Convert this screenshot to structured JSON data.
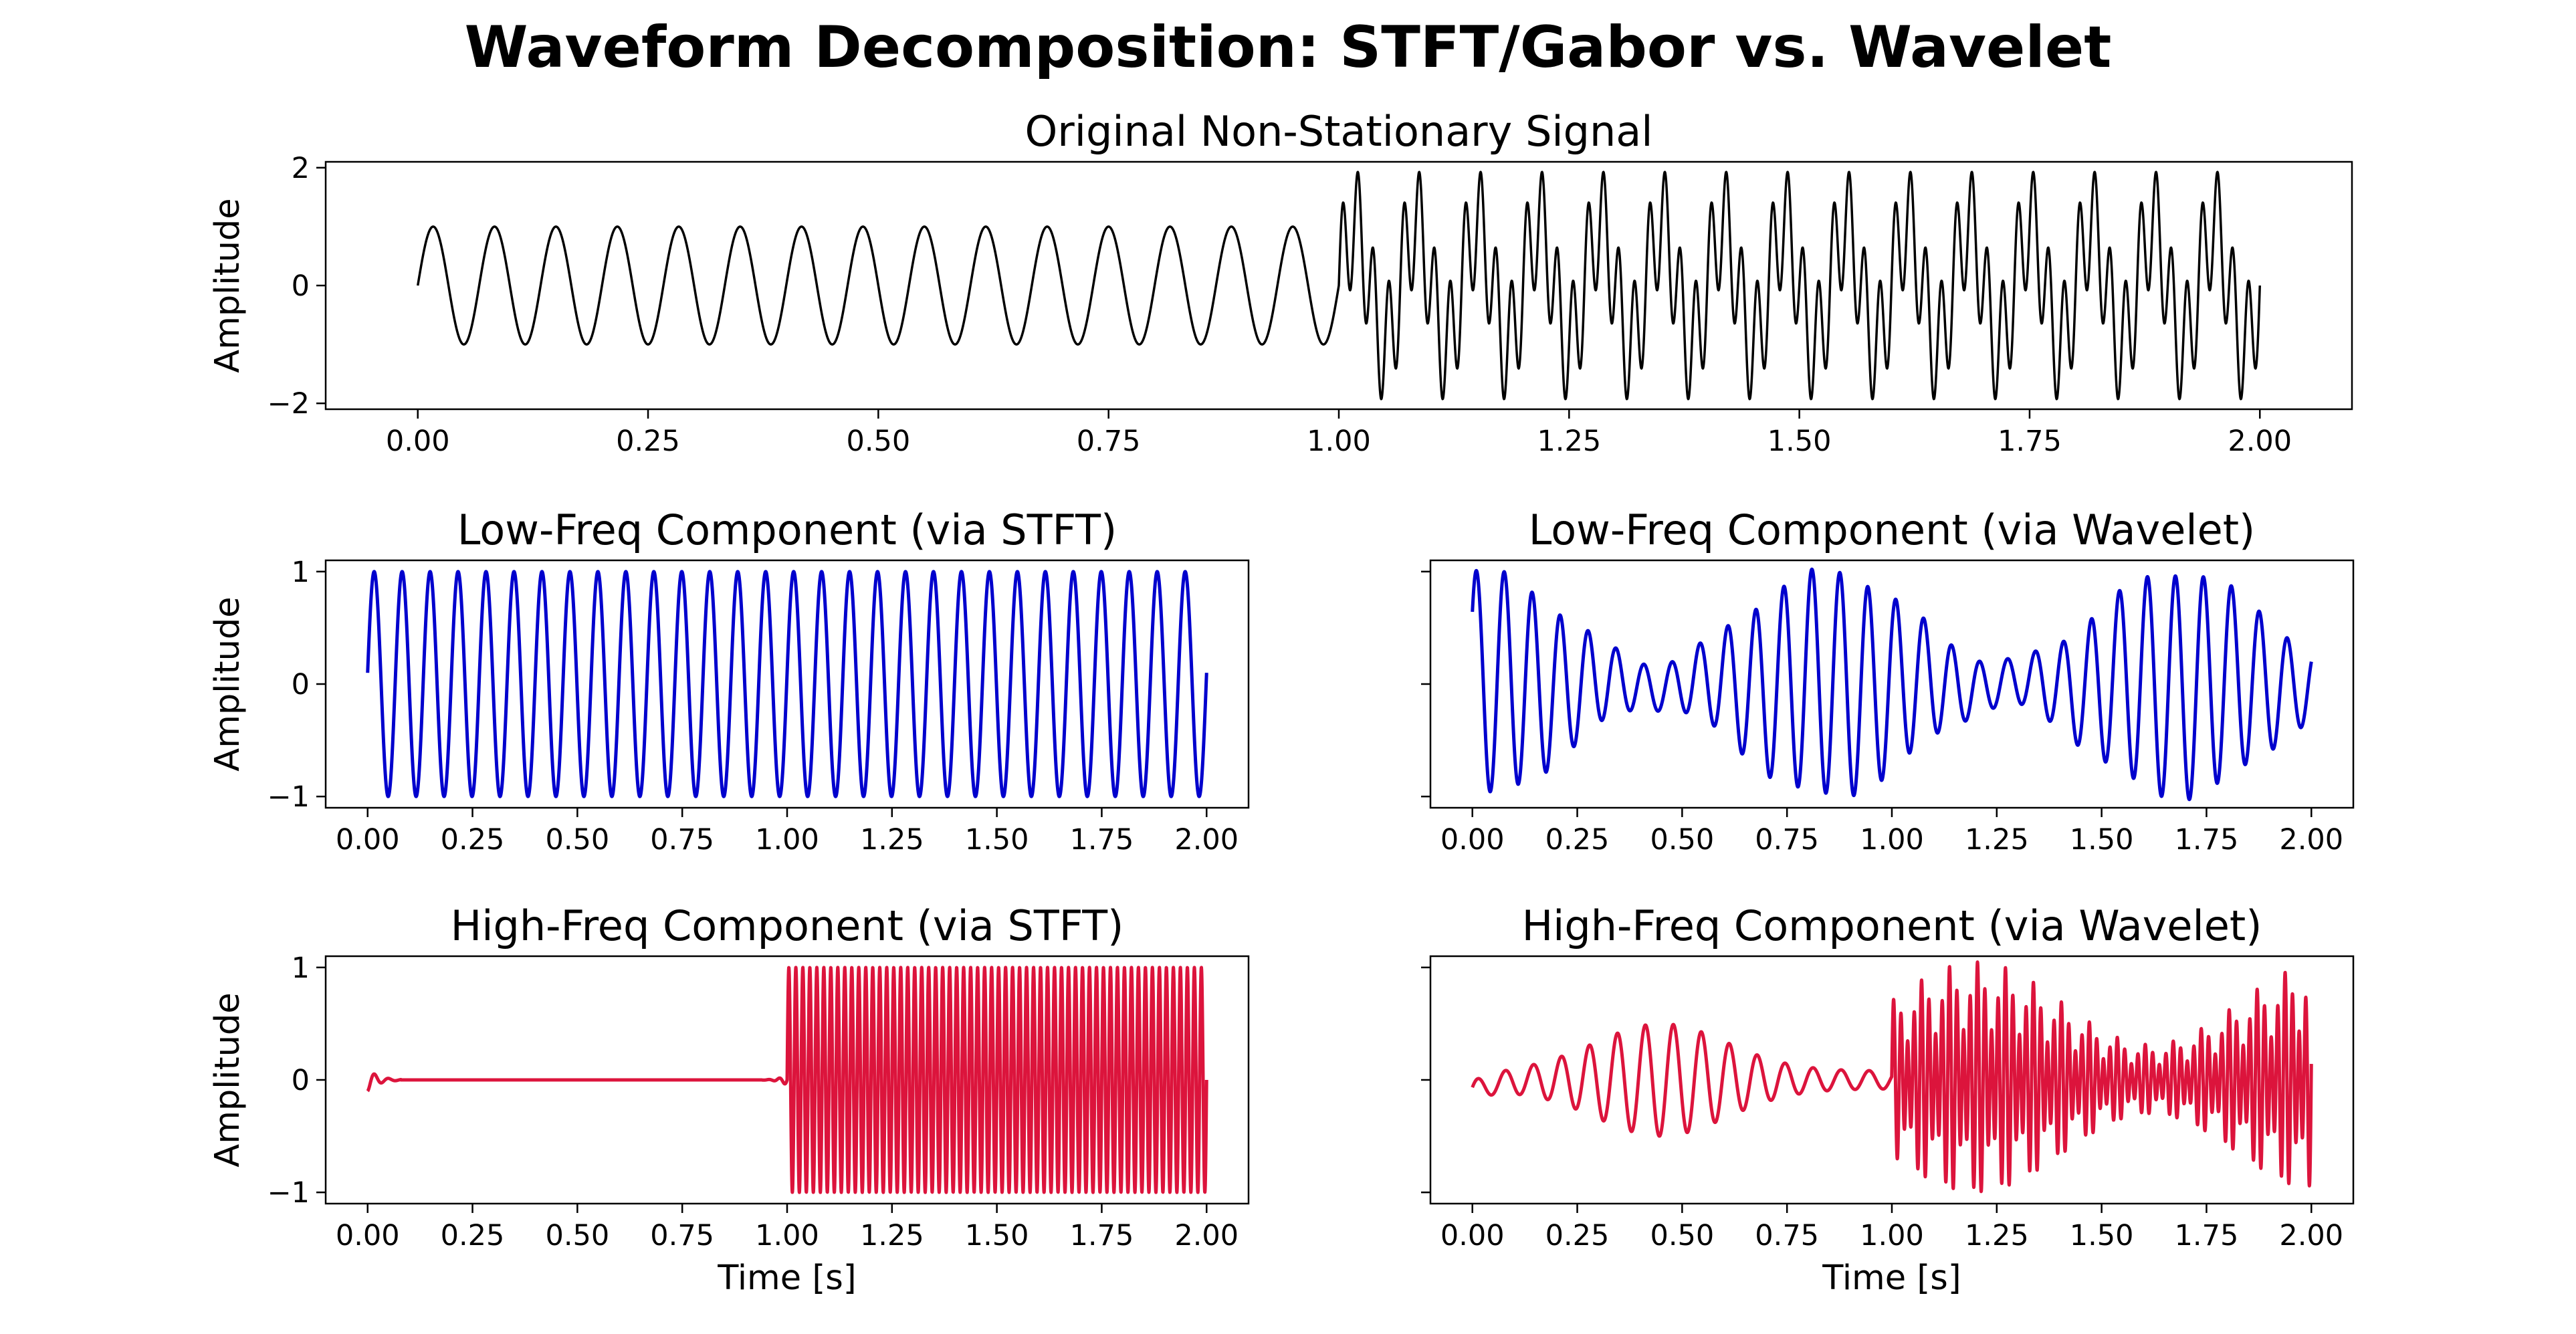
{
  "chart_data": {
    "title": "Waveform Decomposition: STFT/Gabor vs. Wavelet",
    "panels": [
      {
        "id": "original",
        "type": "line",
        "title": "Original Non-Stationary Signal",
        "xlabel": "",
        "ylabel": "Amplitude",
        "xlim": [
          -0.1,
          2.1
        ],
        "ylim": [
          -2.1,
          2.1
        ],
        "xticks": [
          0,
          0.25,
          0.5,
          0.75,
          1.0,
          1.25,
          1.5,
          1.75,
          2.0
        ],
        "xticklabels": [
          "0.00",
          "0.25",
          "0.50",
          "0.75",
          "1.00",
          "1.25",
          "1.50",
          "1.75",
          "2.00"
        ],
        "yticks": [
          -2,
          0,
          2
        ],
        "yticklabels": [
          "−2",
          "0",
          "2"
        ],
        "color": "#000000",
        "signal": "t<1: sin(2π·15t); t≥1: sin(2π·15t) + sin(2π·60t)",
        "x_range": [
          0,
          2
        ]
      },
      {
        "id": "low_stft",
        "type": "line",
        "title": "Low-Freq Component (via STFT)",
        "xlabel": "",
        "ylabel": "Amplitude",
        "xlim": [
          -0.1,
          2.1
        ],
        "ylim": [
          -1.1,
          1.1
        ],
        "xticks": [
          0,
          0.25,
          0.5,
          0.75,
          1.0,
          1.25,
          1.5,
          1.75,
          2.0
        ],
        "xticklabels": [
          "0.00",
          "0.25",
          "0.50",
          "0.75",
          "1.00",
          "1.25",
          "1.50",
          "1.75",
          "2.00"
        ],
        "yticks": [
          -1,
          0,
          1
        ],
        "yticklabels": [
          "−1",
          "0",
          "1"
        ],
        "color": "#0000cd",
        "signal": "≈ sin(2π·15t), amplitude 1 throughout",
        "x_range": [
          0,
          2
        ]
      },
      {
        "id": "low_wavelet",
        "type": "line",
        "title": "Low-Freq Component (via Wavelet)",
        "xlabel": "",
        "ylabel": "",
        "xlim": [
          -0.1,
          2.1
        ],
        "ylim": [
          -1.1,
          1.1
        ],
        "xticks": [
          0,
          0.25,
          0.5,
          0.75,
          1.0,
          1.25,
          1.5,
          1.75,
          2.0
        ],
        "xticklabels": [
          "0.00",
          "0.25",
          "0.50",
          "0.75",
          "1.00",
          "1.25",
          "1.50",
          "1.75",
          "2.00"
        ],
        "yticks": [
          -1,
          0,
          1
        ],
        "yticklabels": [
          "",
          "",
          ""
        ],
        "color": "#0000cd",
        "signal": "≈15 Hz oscillation with amplitude envelope beating (minima near t=0.45 and t=1.25)",
        "x_range": [
          0,
          2
        ]
      },
      {
        "id": "high_stft",
        "type": "line",
        "title": "High-Freq Component (via STFT)",
        "xlabel": "Time [s]",
        "ylabel": "Amplitude",
        "xlim": [
          -0.1,
          2.1
        ],
        "ylim": [
          -1.1,
          1.1
        ],
        "xticks": [
          0,
          0.25,
          0.5,
          0.75,
          1.0,
          1.25,
          1.5,
          1.75,
          2.0
        ],
        "xticklabels": [
          "0.00",
          "0.25",
          "0.50",
          "0.75",
          "1.00",
          "1.25",
          "1.50",
          "1.75",
          "2.00"
        ],
        "yticks": [
          -1,
          0,
          1
        ],
        "yticklabels": [
          "−1",
          "0",
          "1"
        ],
        "color": "#dc143c",
        "signal": "≈0 for t<1 (small edge ripples); dense 60 Hz oscillation, amplitude 1, for t≥1",
        "x_range": [
          0,
          2
        ]
      },
      {
        "id": "high_wavelet",
        "type": "line",
        "title": "High-Freq Component (via Wavelet)",
        "xlabel": "Time [s]",
        "ylabel": "",
        "xlim": [
          -0.1,
          2.1
        ],
        "ylim": [
          -1.1,
          1.1
        ],
        "xticks": [
          0,
          0.25,
          0.5,
          0.75,
          1.0,
          1.25,
          1.5,
          1.75,
          2.0
        ],
        "xticklabels": [
          "0.00",
          "0.25",
          "0.50",
          "0.75",
          "1.00",
          "1.25",
          "1.50",
          "1.75",
          "2.00"
        ],
        "yticks": [
          -1,
          0,
          1
        ],
        "yticklabels": [
          "",
          "",
          ""
        ],
        "color": "#dc143c",
        "signal": "leaked ≈15 Hz ripple up to ±0.5 for t<1; noisy 60 Hz oscillation up to ±1 for t≥1",
        "x_range": [
          0,
          2
        ]
      }
    ]
  }
}
